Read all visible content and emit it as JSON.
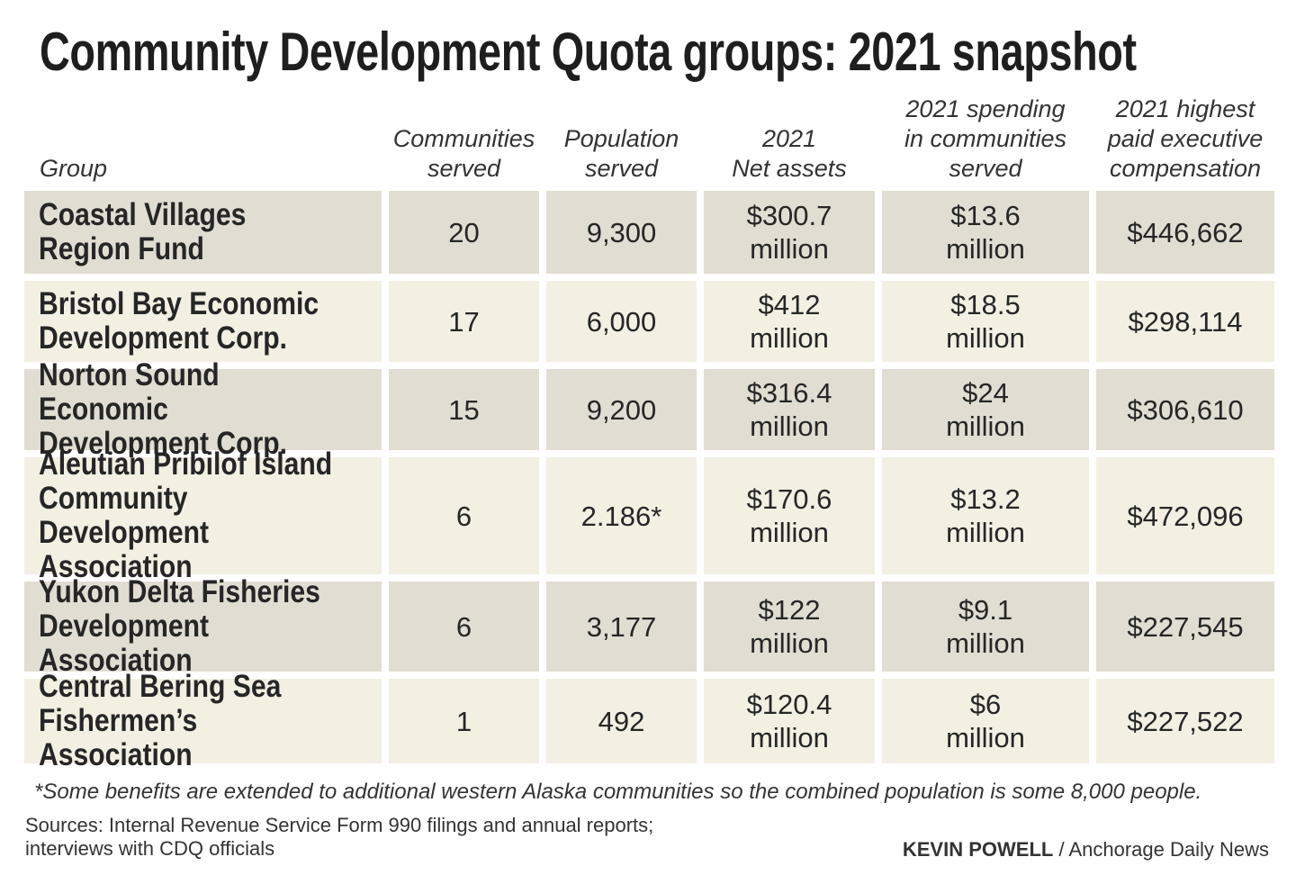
{
  "title": "Community Development Quota groups: 2021 snapshot",
  "colors": {
    "row_dark": "#e2ddd2",
    "row_light": "#f3efe3",
    "text": "#262626"
  },
  "chart_data": {
    "type": "table",
    "title": "Community Development Quota groups: 2021 snapshot",
    "columns": [
      "Group",
      "Communities\nserved",
      "Population\nserved",
      "2021\nNet assets",
      "2021 spending\nin communities\nserved",
      "2021 highest\npaid executive\ncompensation"
    ],
    "rows": [
      [
        "Coastal Villages\nRegion Fund",
        "20",
        "9,300",
        "$300.7\nmillion",
        "$13.6\nmillion",
        "$446,662"
      ],
      [
        "Bristol Bay Economic\nDevelopment Corp.",
        "17",
        "6,000",
        "$412\nmillion",
        "$18.5\nmillion",
        "$298,114"
      ],
      [
        "Norton Sound Economic\nDevelopment Corp.",
        "15",
        "9,200",
        "$316.4\nmillion",
        "$24\nmillion",
        "$306,610"
      ],
      [
        "Aleutian Pribilof Island\nCommunity Development\nAssociation",
        "6",
        "2.186*",
        "$170.6\nmillion",
        "$13.2\nmillion",
        "$472,096"
      ],
      [
        "Yukon Delta Fisheries\nDevelopment Association",
        "6",
        "3,177",
        "$122\nmillion",
        "$9.1\nmillion",
        "$227,545"
      ],
      [
        "Central Bering Sea\nFishermen’s  Association",
        "1",
        "492",
        "$120.4\nmillion",
        "$6\nmillion",
        "$227,522"
      ]
    ]
  },
  "footnote": "*Some benefits are extended to additional western Alaska communities so the combined population is some 8,000 people.",
  "sources": "Sources: Internal Revenue Service Form 990 filings and annual reports;\ninterviews with CDQ officials",
  "credit": {
    "author": "KEVIN POWELL",
    "separator": " / ",
    "outlet": "Anchorage Daily News"
  }
}
